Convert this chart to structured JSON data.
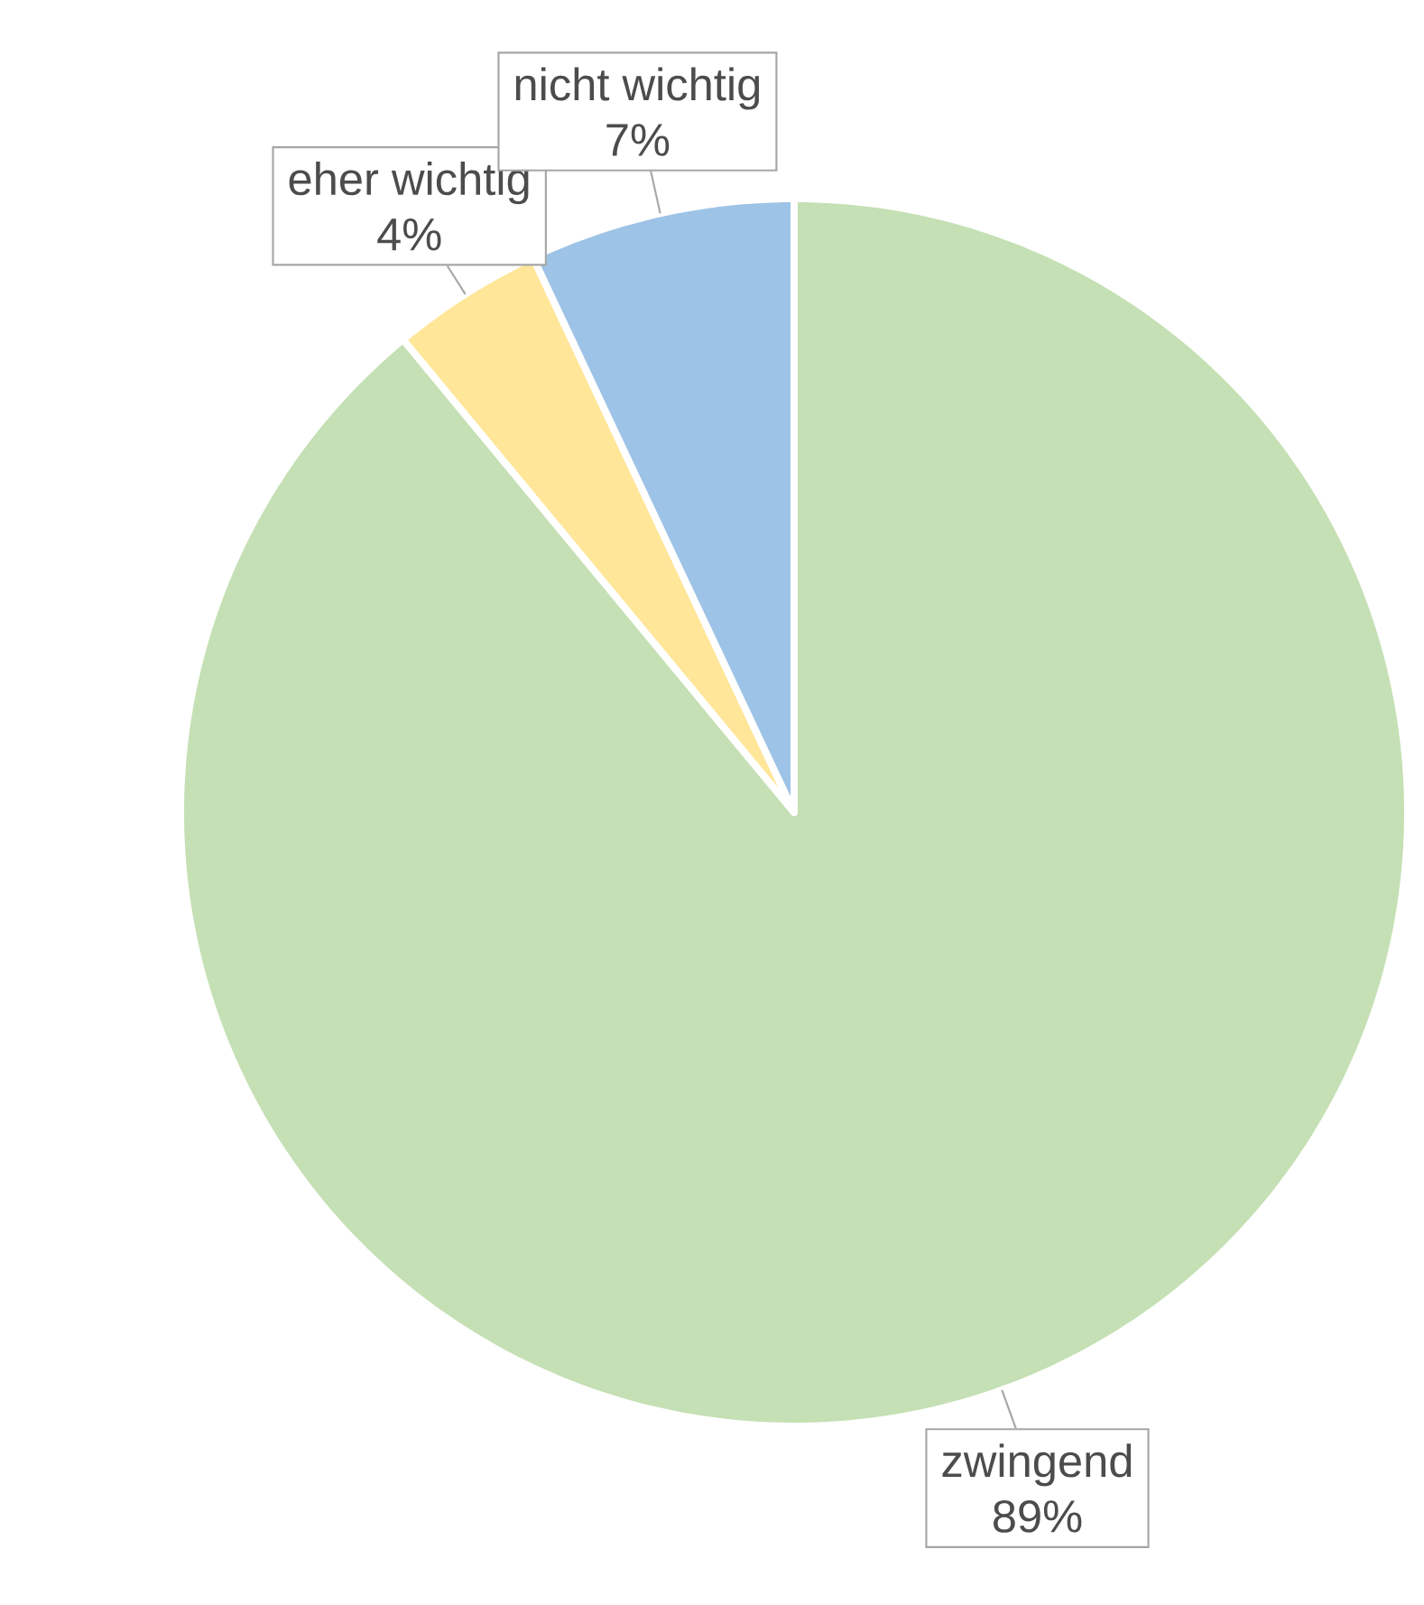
{
  "chart_data": {
    "type": "pie",
    "categories": [
      "zwingend",
      "eher wichtig",
      "nicht wichtig"
    ],
    "values": [
      89,
      4,
      7
    ],
    "colors": [
      "#c5e0b4",
      "#ffe699",
      "#9dc3e6"
    ],
    "value_labels": [
      "89%",
      "4%",
      "7%"
    ]
  }
}
